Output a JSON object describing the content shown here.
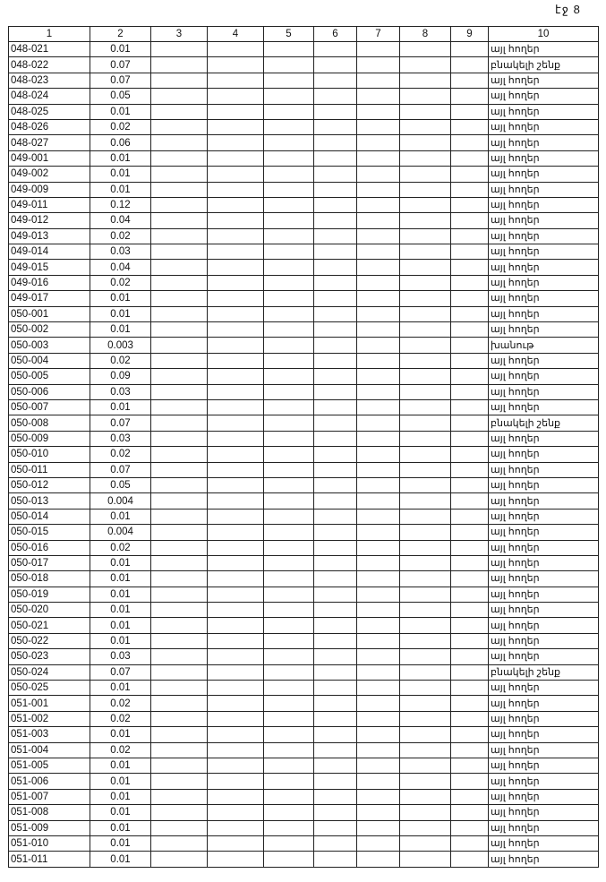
{
  "page_label": "էջ 8",
  "headers": [
    "1",
    "2",
    "3",
    "4",
    "5",
    "6",
    "7",
    "8",
    "9",
    "10"
  ],
  "rows": [
    [
      "048-021",
      "0.01",
      "այլ հողեր"
    ],
    [
      "048-022",
      "0.07",
      "բնակելի շենք"
    ],
    [
      "048-023",
      "0.07",
      "այլ հողեր"
    ],
    [
      "048-024",
      "0.05",
      "այլ հողեր"
    ],
    [
      "048-025",
      "0.01",
      "այլ հողեր"
    ],
    [
      "048-026",
      "0.02",
      "այլ հողեր"
    ],
    [
      "048-027",
      "0.06",
      "այլ հողեր"
    ],
    [
      "049-001",
      "0.01",
      "այլ հողեր"
    ],
    [
      "049-002",
      "0.01",
      "այլ հողեր"
    ],
    [
      "049-009",
      "0.01",
      "այլ հողեր"
    ],
    [
      "049-011",
      "0.12",
      "այլ հողեր"
    ],
    [
      "049-012",
      "0.04",
      "այլ հողեր"
    ],
    [
      "049-013",
      "0.02",
      "այլ հողեր"
    ],
    [
      "049-014",
      "0.03",
      "այլ հողեր"
    ],
    [
      "049-015",
      "0.04",
      "այլ հողեր"
    ],
    [
      "049-016",
      "0.02",
      "այլ հողեր"
    ],
    [
      "049-017",
      "0.01",
      "այլ հողեր"
    ],
    [
      "050-001",
      "0.01",
      "այլ հողեր"
    ],
    [
      "050-002",
      "0.01",
      "այլ հողեր"
    ],
    [
      "050-003",
      "0.003",
      "խանութ"
    ],
    [
      "050-004",
      "0.02",
      "այլ հողեր"
    ],
    [
      "050-005",
      "0.09",
      "այլ հողեր"
    ],
    [
      "050-006",
      "0.03",
      "այլ հողեր"
    ],
    [
      "050-007",
      "0.01",
      "այլ հողեր"
    ],
    [
      "050-008",
      "0.07",
      "բնակելի շենք"
    ],
    [
      "050-009",
      "0.03",
      "այլ հողեր"
    ],
    [
      "050-010",
      "0.02",
      "այլ հողեր"
    ],
    [
      "050-011",
      "0.07",
      "այլ հողեր"
    ],
    [
      "050-012",
      "0.05",
      "այլ հողեր"
    ],
    [
      "050-013",
      "0.004",
      "այլ հողեր"
    ],
    [
      "050-014",
      "0.01",
      "այլ հողեր"
    ],
    [
      "050-015",
      "0.004",
      "այլ հողեր"
    ],
    [
      "050-016",
      "0.02",
      "այլ հողեր"
    ],
    [
      "050-017",
      "0.01",
      "այլ հողեր"
    ],
    [
      "050-018",
      "0.01",
      "այլ հողեր"
    ],
    [
      "050-019",
      "0.01",
      "այլ հողեր"
    ],
    [
      "050-020",
      "0.01",
      "այլ հողեր"
    ],
    [
      "050-021",
      "0.01",
      "այլ հողեր"
    ],
    [
      "050-022",
      "0.01",
      "այլ հողեր"
    ],
    [
      "050-023",
      "0.03",
      "այլ հողեր"
    ],
    [
      "050-024",
      "0.07",
      "բնակելի շենք"
    ],
    [
      "050-025",
      "0.01",
      "այլ հողեր"
    ],
    [
      "051-001",
      "0.02",
      "այլ հողեր"
    ],
    [
      "051-002",
      "0.02",
      "այլ հողեր"
    ],
    [
      "051-003",
      "0.01",
      "այլ հողեր"
    ],
    [
      "051-004",
      "0.02",
      "այլ հողեր"
    ],
    [
      "051-005",
      "0.01",
      "այլ հողեր"
    ],
    [
      "051-006",
      "0.01",
      "այլ հողեր"
    ],
    [
      "051-007",
      "0.01",
      "այլ հողեր"
    ],
    [
      "051-008",
      "0.01",
      "այլ հողեր"
    ],
    [
      "051-009",
      "0.01",
      "այլ հողեր"
    ],
    [
      "051-010",
      "0.01",
      "այլ հողեր"
    ],
    [
      "051-011",
      "0.01",
      "այլ հողեր"
    ]
  ]
}
